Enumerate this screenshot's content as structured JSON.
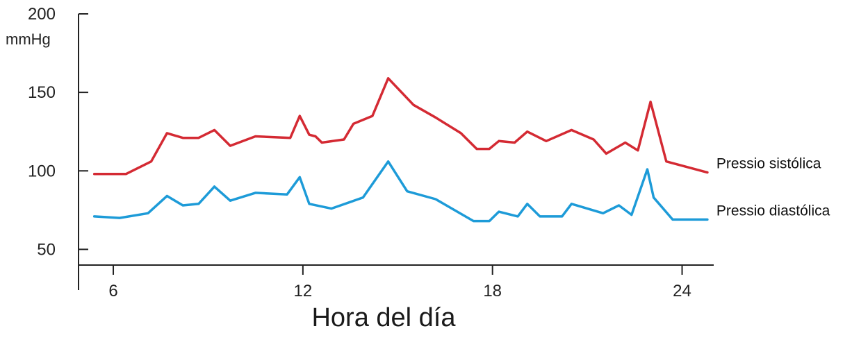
{
  "chart_data": {
    "type": "line",
    "xlabel": "Hora del día",
    "ylabel_unit": "mmHg",
    "xlim": [
      4.9,
      25.0
    ],
    "ylim": [
      40,
      200
    ],
    "x_ticks": [
      6,
      12,
      18,
      24
    ],
    "y_ticks": [
      50,
      100,
      150,
      200
    ],
    "grid": false,
    "series": [
      {
        "name": "Pressio sistólica",
        "color": "#d42a33",
        "x": [
          5.4,
          6.4,
          7.2,
          7.7,
          8.2,
          8.7,
          9.2,
          9.7,
          10.5,
          11.6,
          11.9,
          12.2,
          12.4,
          12.6,
          13.3,
          13.6,
          14.2,
          14.7,
          15.5,
          16.2,
          17.0,
          17.5,
          17.9,
          18.2,
          18.7,
          19.1,
          19.7,
          20.5,
          21.2,
          21.6,
          22.2,
          22.6,
          23.0,
          23.5,
          24.8
        ],
        "y": [
          98,
          98,
          106,
          124,
          121,
          121,
          126,
          116,
          122,
          121,
          135,
          123,
          122,
          118,
          120,
          130,
          135,
          159,
          142,
          134,
          124,
          114,
          114,
          119,
          118,
          125,
          119,
          126,
          120,
          111,
          118,
          113,
          144,
          106,
          99
        ]
      },
      {
        "name": "Pressio diastólica",
        "color": "#1d9bd8",
        "x": [
          5.4,
          6.2,
          7.1,
          7.7,
          8.2,
          8.7,
          9.2,
          9.7,
          10.5,
          11.5,
          11.9,
          12.2,
          12.9,
          13.9,
          14.7,
          15.3,
          16.2,
          17.4,
          17.9,
          18.2,
          18.8,
          19.1,
          19.5,
          20.2,
          20.5,
          21.5,
          22.0,
          22.4,
          22.9,
          23.1,
          23.7,
          24.8
        ],
        "y": [
          71,
          70,
          73,
          84,
          78,
          79,
          90,
          81,
          86,
          85,
          96,
          79,
          76,
          83,
          106,
          87,
          82,
          68,
          68,
          74,
          71,
          79,
          71,
          71,
          79,
          73,
          78,
          72,
          101,
          83,
          69,
          69
        ]
      }
    ],
    "legend_placement": "right-end-of-lines"
  }
}
